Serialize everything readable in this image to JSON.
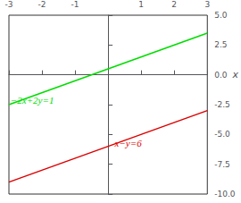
{
  "chart_data": {
    "type": "line",
    "x": [
      -3,
      3
    ],
    "series": [
      {
        "color": "#00dd00",
        "values": [
          -2.5,
          3.5
        ]
      },
      {
        "color": "#dd0000",
        "values": [
          -9.0,
          -3.0
        ]
      }
    ],
    "annotations": [
      {
        "text": "−2x+2y=1",
        "x": -2.95,
        "y": -2.1,
        "color": "#00dd00"
      },
      {
        "text": "x−y=6",
        "x": 0.2,
        "y": -5.7,
        "color": "#dd0000"
      }
    ],
    "xlabel": "x",
    "xlim": [
      -3,
      3
    ],
    "xticks": [
      -3,
      -2,
      -1,
      1,
      2,
      3
    ],
    "ylim": [
      -10,
      5
    ],
    "yticks": [
      {
        "value": -10,
        "label": "-10.0"
      },
      -7.5,
      {
        "value": -5,
        "label": "-5.0"
      },
      -2.5,
      {
        "value": 0,
        "label": "0.0"
      },
      2.5,
      {
        "value": 5,
        "label": "5.0"
      }
    ],
    "grid": false
  }
}
